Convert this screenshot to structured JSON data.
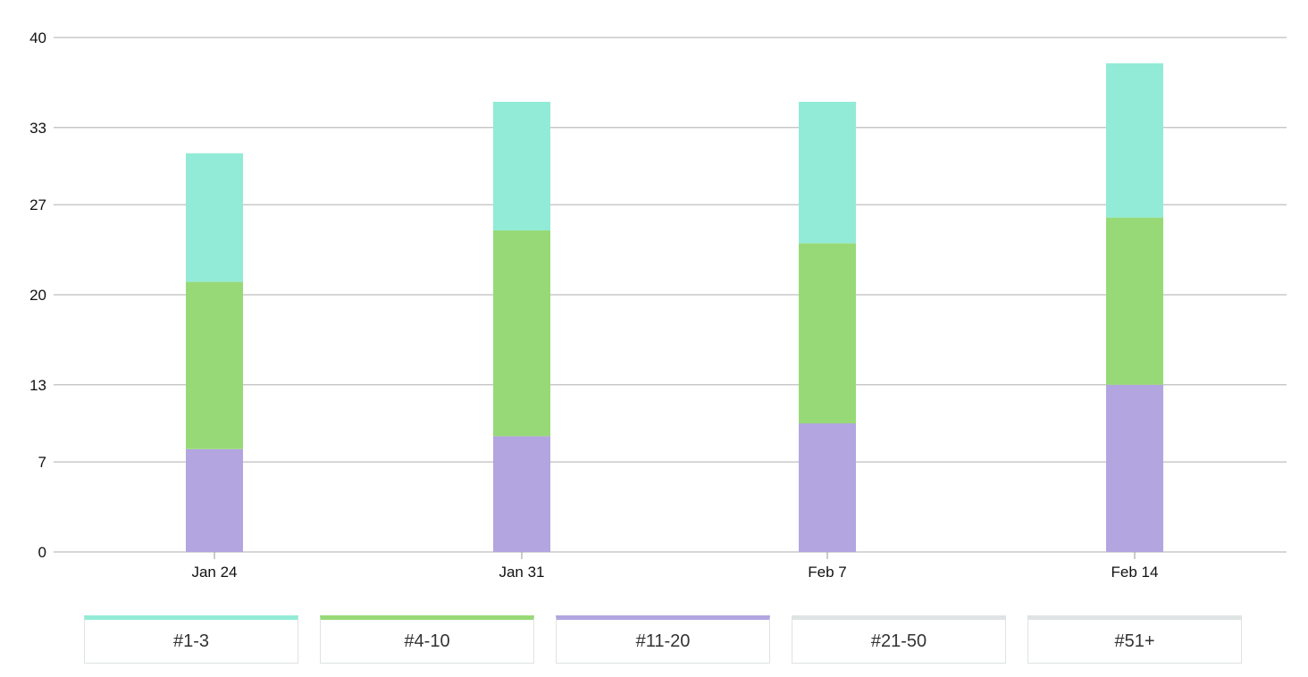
{
  "chart_data": {
    "type": "bar",
    "stacked": true,
    "categories": [
      "Jan 24",
      "Jan 31",
      "Feb 7",
      "Feb 14"
    ],
    "series": [
      {
        "name": "#11-20",
        "color": "#b3a5e0",
        "values": [
          8,
          9,
          10,
          13
        ]
      },
      {
        "name": "#4-10",
        "color": "#98d977",
        "values": [
          13,
          16,
          14,
          13
        ]
      },
      {
        "name": "#1-3",
        "color": "#92ebd6",
        "values": [
          10,
          10,
          11,
          12
        ]
      },
      {
        "name": "#21-50",
        "color": "#dfe3e3",
        "values": [
          0,
          0,
          0,
          0
        ]
      },
      {
        "name": "#51+",
        "color": "#dfe3e3",
        "values": [
          0,
          0,
          0,
          0
        ]
      }
    ],
    "y_ticks": [
      "0",
      "7",
      "13",
      "20",
      "27",
      "33",
      "40"
    ],
    "ylim": [
      0,
      40
    ],
    "grid": true,
    "legend_position": "bottom",
    "title": "",
    "xlabel": "",
    "ylabel": ""
  },
  "legend": {
    "items": [
      {
        "label": "#1-3",
        "color": "#92ebd6"
      },
      {
        "label": "#4-10",
        "color": "#98d977"
      },
      {
        "label": "#11-20",
        "color": "#b3a5e0"
      },
      {
        "label": "#21-50",
        "color": "#dfe3e3"
      },
      {
        "label": "#51+",
        "color": "#dfe3e3"
      }
    ]
  }
}
